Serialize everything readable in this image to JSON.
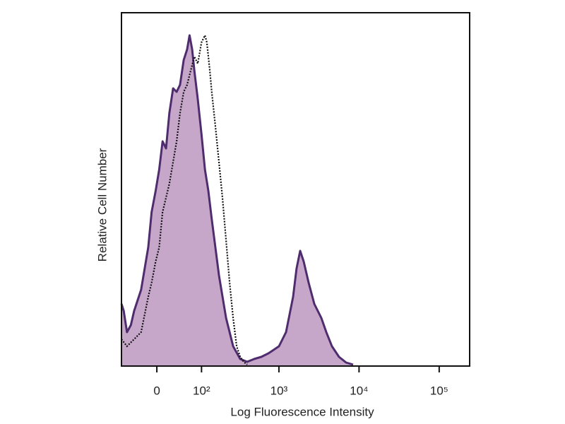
{
  "chart_data": {
    "type": "histogram-overlay",
    "x_label": "Log Fluorescence Intensity",
    "y_label": "Relative Cell Number",
    "xscale": "asinh",
    "xlim": [
      -72,
      240000
    ],
    "ylim": [
      0,
      100
    ],
    "xticks": [
      0,
      {
        "value": 100,
        "label": "10²"
      },
      {
        "value": 1000,
        "label": "10³"
      },
      {
        "value": 10000,
        "label": "10⁴"
      },
      {
        "value": 100000,
        "label": "10⁵"
      }
    ],
    "series": [
      {
        "style": "filled",
        "color": "#c7a7c9",
        "line_color": "#4e2c6e",
        "x": [
          -72,
          -66,
          -58,
          -49,
          -42,
          -28,
          -15,
          -9,
          -2,
          4,
          10,
          16,
          22,
          29,
          36,
          43,
          51,
          59,
          65,
          72,
          78,
          88,
          100,
          112,
          125,
          139,
          174,
          215,
          265,
          326,
          400,
          490,
          602,
          739,
          1001,
          1227,
          1504,
          1662,
          1840,
          2039,
          2350,
          2766,
          3386,
          3902,
          4590,
          5622,
          6888,
          8436
        ],
        "values": [
          17.6,
          15.6,
          9.6,
          11.6,
          15.6,
          21.6,
          33.6,
          43.6,
          49.6,
          55.6,
          63.6,
          61.6,
          71.6,
          78.6,
          77.6,
          79.6,
          86.6,
          89.6,
          93.6,
          89.6,
          83.6,
          75.6,
          65.6,
          55.6,
          49.6,
          41.6,
          25.6,
          13.6,
          5.6,
          2,
          1.2,
          2,
          2.6,
          3.6,
          5.6,
          9.6,
          19.6,
          27.6,
          32.6,
          29.6,
          23.6,
          17.6,
          13.6,
          9.6,
          5.6,
          2.6,
          1,
          0.4
        ]
      },
      {
        "style": "dotted",
        "color": "#111111",
        "x": [
          -72,
          -58,
          -42,
          -28,
          -15,
          -9,
          -2,
          4,
          10,
          22,
          36,
          43,
          51,
          59,
          68,
          78,
          88,
          100,
          112,
          119,
          131,
          139,
          156,
          174,
          193,
          215,
          239,
          265,
          294,
          326,
          361,
          400
        ],
        "values": [
          7.6,
          5.6,
          7.6,
          9.6,
          19.6,
          23.6,
          29.6,
          33.6,
          43.6,
          51.6,
          63.6,
          71.6,
          77.6,
          79.6,
          83.6,
          87.6,
          85.6,
          91.6,
          93.6,
          91.6,
          83.6,
          77.6,
          67.6,
          57.6,
          47.6,
          35.6,
          23.6,
          13.6,
          5.6,
          2.6,
          1.2,
          0.4
        ]
      }
    ]
  }
}
